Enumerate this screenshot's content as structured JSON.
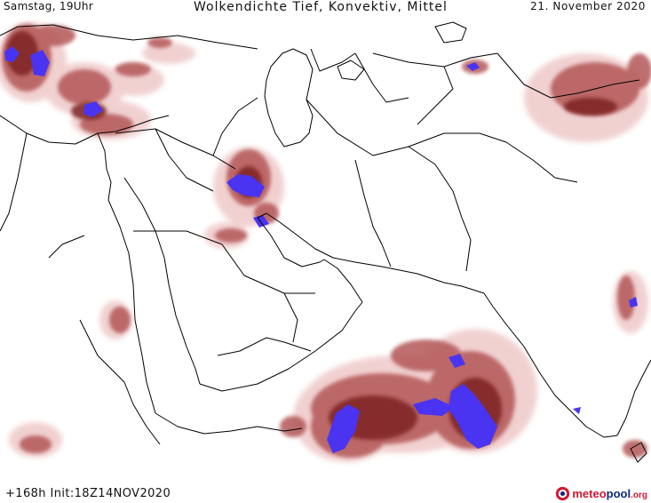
{
  "header": {
    "datetime_left": "Samstag, 19Uhr",
    "title": "Wolkendichte  Tief, Konvektiv, Mittel",
    "date_right": "21. November 2020"
  },
  "footer": {
    "run_info": "+168h  Init:18Z14NOV2020",
    "brand": {
      "part1": "meteo",
      "part2": "pool",
      "part3": ".org"
    }
  },
  "map": {
    "region": "Middle East, Arabian Peninsula, Arabian Sea, South Asia",
    "legend": {
      "cloud_light": "#f3d6d6",
      "cloud_medium": "#b35656",
      "cloud_dense": "#7d2323",
      "convective": "#4a34f2",
      "border_color": "#000000"
    }
  }
}
